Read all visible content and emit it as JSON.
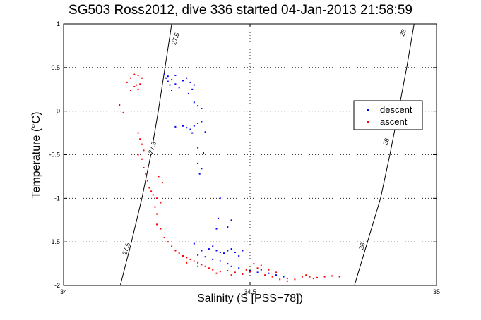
{
  "chart_data": {
    "type": "scatter",
    "title": "SG503 Ross2012, dive 336 started 04-Jan-2013 21:58:59",
    "xlabel": "Salinity (S [PSS−78])",
    "ylabel": "Temperature (°C)",
    "xlim": [
      34,
      35
    ],
    "ylim": [
      -2,
      1
    ],
    "xticks": [
      "34",
      "34.5",
      "35"
    ],
    "yticks": [
      "-2",
      "-1.5",
      "-1",
      "-0.5",
      "0",
      "0.5",
      "1"
    ],
    "grid": true,
    "legend_placement": "right",
    "density_contours": [
      {
        "label": "27.5",
        "points": [
          [
            34.152,
            -2.0
          ],
          [
            34.182,
            -1.5
          ],
          [
            34.21,
            -1.0
          ],
          [
            34.234,
            -0.5
          ],
          [
            34.254,
            0.0
          ],
          [
            34.272,
            0.5
          ],
          [
            34.29,
            1.0
          ]
        ]
      },
      {
        "label": "28",
        "points": [
          [
            34.78,
            -2.0
          ],
          [
            34.815,
            -1.5
          ],
          [
            34.85,
            -1.0
          ],
          [
            34.875,
            -0.5
          ],
          [
            34.898,
            0.0
          ],
          [
            34.92,
            0.5
          ],
          [
            34.94,
            1.0
          ]
        ]
      }
    ],
    "contour_label_positions": [
      {
        "label": "27.5",
        "x": 34.3,
        "y": 0.83
      },
      {
        "label": "27.5",
        "x": 34.238,
        "y": -0.42
      },
      {
        "label": "27.5",
        "x": 34.168,
        "y": -1.58
      },
      {
        "label": "28",
        "x": 34.91,
        "y": 0.9
      },
      {
        "label": "28",
        "x": 34.865,
        "y": -0.35
      },
      {
        "label": "28",
        "x": 34.8,
        "y": -1.55
      }
    ],
    "series": [
      {
        "name": "descent",
        "color": "#0000ff",
        "points": [
          [
            34.27,
            0.42
          ],
          [
            34.275,
            0.38
          ],
          [
            34.28,
            0.34
          ],
          [
            34.285,
            0.3
          ],
          [
            34.29,
            0.36
          ],
          [
            34.3,
            0.31
          ],
          [
            34.31,
            0.27
          ],
          [
            34.32,
            0.35
          ],
          [
            34.33,
            0.38
          ],
          [
            34.34,
            0.33
          ],
          [
            34.35,
            0.3
          ],
          [
            34.29,
            0.24
          ],
          [
            34.28,
            0.4
          ],
          [
            34.3,
            0.41
          ],
          [
            34.345,
            0.25
          ],
          [
            34.335,
            0.2
          ],
          [
            34.35,
            0.1
          ],
          [
            34.36,
            0.06
          ],
          [
            34.37,
            0.03
          ],
          [
            34.3,
            -0.18
          ],
          [
            34.32,
            -0.17
          ],
          [
            34.33,
            -0.19
          ],
          [
            34.34,
            -0.21
          ],
          [
            34.35,
            -0.17
          ],
          [
            34.36,
            -0.14
          ],
          [
            34.37,
            -0.12
          ],
          [
            34.345,
            -0.25
          ],
          [
            34.38,
            -0.24
          ],
          [
            34.36,
            -0.42
          ],
          [
            34.375,
            -0.48
          ],
          [
            34.36,
            -0.6
          ],
          [
            34.37,
            -0.66
          ],
          [
            34.365,
            -0.72
          ],
          [
            34.42,
            -1.0
          ],
          [
            34.415,
            -1.23
          ],
          [
            34.45,
            -1.25
          ],
          [
            34.44,
            -1.33
          ],
          [
            34.41,
            -1.35
          ],
          [
            34.35,
            -1.52
          ],
          [
            34.37,
            -1.6
          ],
          [
            34.39,
            -1.58
          ],
          [
            34.4,
            -1.55
          ],
          [
            34.41,
            -1.6
          ],
          [
            34.42,
            -1.62
          ],
          [
            34.43,
            -1.63
          ],
          [
            34.44,
            -1.6
          ],
          [
            34.45,
            -1.58
          ],
          [
            34.46,
            -1.62
          ],
          [
            34.47,
            -1.66
          ],
          [
            34.48,
            -1.6
          ],
          [
            34.36,
            -1.65
          ],
          [
            34.38,
            -1.67
          ],
          [
            34.4,
            -1.7
          ],
          [
            34.42,
            -1.72
          ],
          [
            34.44,
            -1.75
          ],
          [
            34.45,
            -1.78
          ],
          [
            34.47,
            -1.8
          ],
          [
            34.5,
            -1.83
          ],
          [
            34.52,
            -1.85
          ],
          [
            34.53,
            -1.82
          ],
          [
            34.55,
            -1.86
          ],
          [
            34.57,
            -1.88
          ],
          [
            34.59,
            -1.9
          ]
        ]
      },
      {
        "name": "ascent",
        "color": "#ff0000",
        "points": [
          [
            34.15,
            0.07
          ],
          [
            34.17,
            0.33
          ],
          [
            34.18,
            0.38
          ],
          [
            34.19,
            0.42
          ],
          [
            34.2,
            0.41
          ],
          [
            34.21,
            0.38
          ],
          [
            34.205,
            0.31
          ],
          [
            34.195,
            0.3
          ],
          [
            34.2,
            0.25
          ],
          [
            34.18,
            0.24
          ],
          [
            34.19,
            0.28
          ],
          [
            34.16,
            -0.02
          ],
          [
            34.2,
            -0.25
          ],
          [
            34.205,
            -0.32
          ],
          [
            34.21,
            -0.38
          ],
          [
            34.215,
            -0.45
          ],
          [
            34.2,
            -0.5
          ],
          [
            34.21,
            -0.55
          ],
          [
            34.215,
            -0.65
          ],
          [
            34.22,
            -0.72
          ],
          [
            34.225,
            -0.8
          ],
          [
            34.23,
            -0.88
          ],
          [
            34.235,
            -0.92
          ],
          [
            34.24,
            -0.96
          ],
          [
            34.25,
            -1.0
          ],
          [
            34.26,
            -1.05
          ],
          [
            34.255,
            -0.75
          ],
          [
            34.265,
            -0.82
          ],
          [
            34.245,
            -1.1
          ],
          [
            34.25,
            -1.18
          ],
          [
            34.25,
            -1.3
          ],
          [
            34.26,
            -1.35
          ],
          [
            34.27,
            -1.45
          ],
          [
            34.28,
            -1.5
          ],
          [
            34.29,
            -1.55
          ],
          [
            34.3,
            -1.6
          ],
          [
            34.31,
            -1.63
          ],
          [
            34.32,
            -1.66
          ],
          [
            34.33,
            -1.68
          ],
          [
            34.34,
            -1.7
          ],
          [
            34.35,
            -1.72
          ],
          [
            34.36,
            -1.74
          ],
          [
            34.37,
            -1.76
          ],
          [
            34.38,
            -1.78
          ],
          [
            34.39,
            -1.8
          ],
          [
            34.4,
            -1.82
          ],
          [
            34.42,
            -1.84
          ],
          [
            34.44,
            -1.83
          ],
          [
            34.46,
            -1.85
          ],
          [
            34.48,
            -1.87
          ],
          [
            34.5,
            -1.84
          ],
          [
            34.52,
            -1.8
          ],
          [
            34.54,
            -1.88
          ],
          [
            34.56,
            -1.9
          ],
          [
            34.58,
            -1.93
          ],
          [
            34.6,
            -1.95
          ],
          [
            34.62,
            -1.93
          ],
          [
            34.64,
            -1.9
          ],
          [
            34.66,
            -1.9
          ],
          [
            34.68,
            -1.91
          ],
          [
            34.7,
            -1.9
          ],
          [
            34.72,
            -1.89
          ],
          [
            34.74,
            -1.9
          ],
          [
            34.65,
            -1.88
          ],
          [
            34.67,
            -1.92
          ],
          [
            34.33,
            -1.74
          ],
          [
            34.36,
            -1.78
          ],
          [
            34.41,
            -1.86
          ],
          [
            34.45,
            -1.88
          ],
          [
            34.49,
            -1.82
          ],
          [
            34.51,
            -1.75
          ],
          [
            34.53,
            -1.77
          ],
          [
            34.55,
            -1.82
          ],
          [
            34.57,
            -1.85
          ],
          [
            34.6,
            -1.92
          ]
        ]
      }
    ]
  }
}
